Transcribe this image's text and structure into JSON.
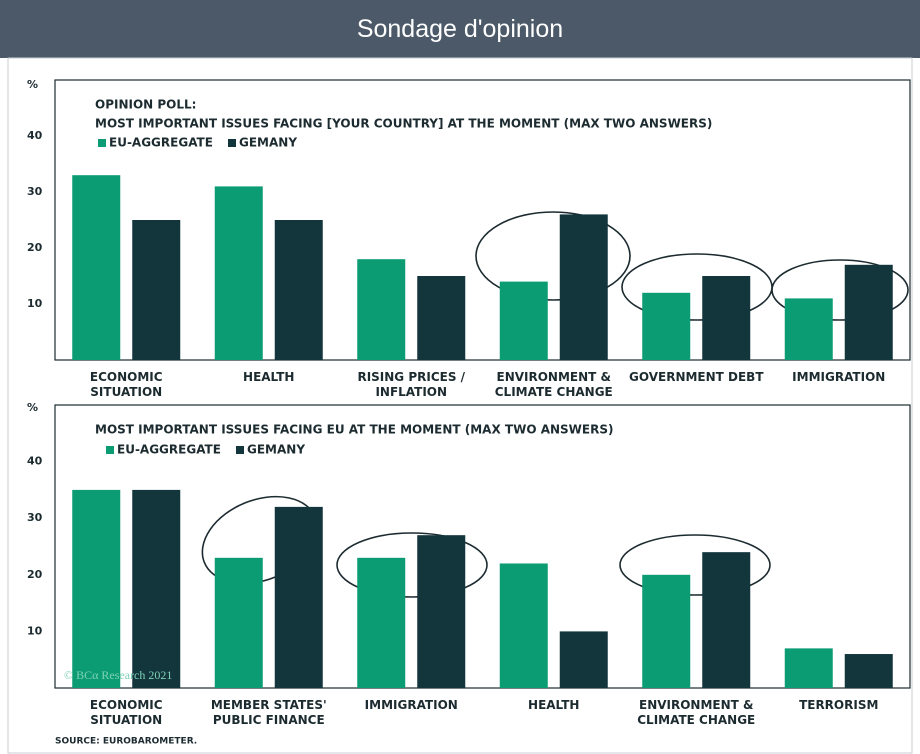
{
  "header": {
    "title": "Sondage d'opinion"
  },
  "chart_data": [
    {
      "type": "bar",
      "title": "OPINION POLL:",
      "subtitle": "MOST IMPORTANT ISSUES FACING [YOUR COUNTRY] AT THE MOMENT (MAX TWO ANSWERS)",
      "ylabel": "%",
      "categories": [
        "ECONOMIC\nSITUATION",
        "HEALTH",
        "RISING PRICES /\nINFLATION",
        "ENVIRONMENT &\nCLIMATE CHANGE",
        "GOVERNMENT DEBT",
        "IMMIGRATION"
      ],
      "series": [
        {
          "name": "EU-AGGREGATE",
          "color": "#0b9c74",
          "values": [
            33,
            31,
            18,
            14,
            12,
            11
          ]
        },
        {
          "name": "GEMANY",
          "color": "#13353c",
          "values": [
            25,
            25,
            15,
            26,
            15,
            17
          ]
        }
      ],
      "ylim": [
        0,
        50
      ],
      "yticks": [
        10,
        20,
        30,
        40
      ],
      "grid": false
    },
    {
      "type": "bar",
      "title": "MOST IMPORTANT ISSUES FACING EU AT THE MOMENT (MAX TWO ANSWERS)",
      "ylabel": "%",
      "categories": [
        "ECONOMIC\nSITUATION",
        "MEMBER STATES'\nPUBLIC FINANCE",
        "IMMIGRATION",
        "HEALTH",
        "ENVIRONMENT &\nCLIMATE CHANGE",
        "TERRORISM"
      ],
      "series": [
        {
          "name": "EU-AGGREGATE",
          "color": "#0b9c74",
          "values": [
            35,
            23,
            23,
            22,
            20,
            7
          ]
        },
        {
          "name": "GEMANY",
          "color": "#13353c",
          "values": [
            35,
            32,
            27,
            10,
            24,
            6
          ]
        }
      ],
      "ylim": [
        0,
        50
      ],
      "yticks": [
        10,
        20,
        30,
        40
      ],
      "grid": false
    }
  ],
  "watermark": "© BCα Research 2021",
  "source": "SOURCE: EUROBAROMETER."
}
